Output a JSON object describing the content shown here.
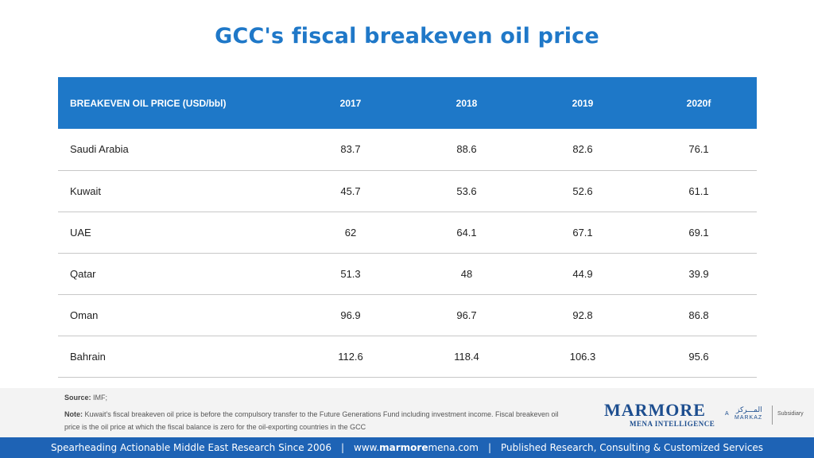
{
  "title": "GCC's fiscal breakeven oil price",
  "chart_data": {
    "type": "table",
    "title": "GCC's fiscal breakeven oil price",
    "header": [
      "BREAKEVEN  OIL PRICE (USD/bbl)",
      "2017",
      "2018",
      "2019",
      "2020f"
    ],
    "rows": [
      [
        "Saudi Arabia",
        "83.7",
        "88.6",
        "82.6",
        "76.1"
      ],
      [
        "Kuwait",
        "45.7",
        "53.6",
        "52.6",
        "61.1"
      ],
      [
        "UAE",
        "62",
        "64.1",
        "67.1",
        "69.1"
      ],
      [
        "Qatar",
        "51.3",
        "48",
        "44.9",
        "39.9"
      ],
      [
        "Oman",
        "96.9",
        "96.7",
        "92.8",
        "86.8"
      ],
      [
        "Bahrain",
        "112.6",
        "118.4",
        "106.3",
        "95.6"
      ]
    ]
  },
  "source": {
    "label": "Source:",
    "text": "IMF;"
  },
  "note": {
    "label": "Note:",
    "text": "Kuwait's fiscal breakeven oil price is before the compulsory transfer to the Future Generations Fund including investment income. Fiscal breakeven oil price is the oil price at which the fiscal balance is zero for the oil-exporting countries in the GCC"
  },
  "logo": {
    "main": "MARMORE",
    "sub": "MENA INTELLIGENCE",
    "a": "A",
    "markaz_ar": "المـــركز",
    "markaz_en": "MARKAZ",
    "subsidiary": "Subsidiary"
  },
  "footer": {
    "part1": "Spearheading Actionable Middle East Research Since 2006",
    "sep1": "|",
    "url_prefix": "www.",
    "url_bold": "marmore",
    "url_suffix": "mena.com",
    "sep2": "|",
    "part3": "Published Research, Consulting & Customized Services"
  }
}
